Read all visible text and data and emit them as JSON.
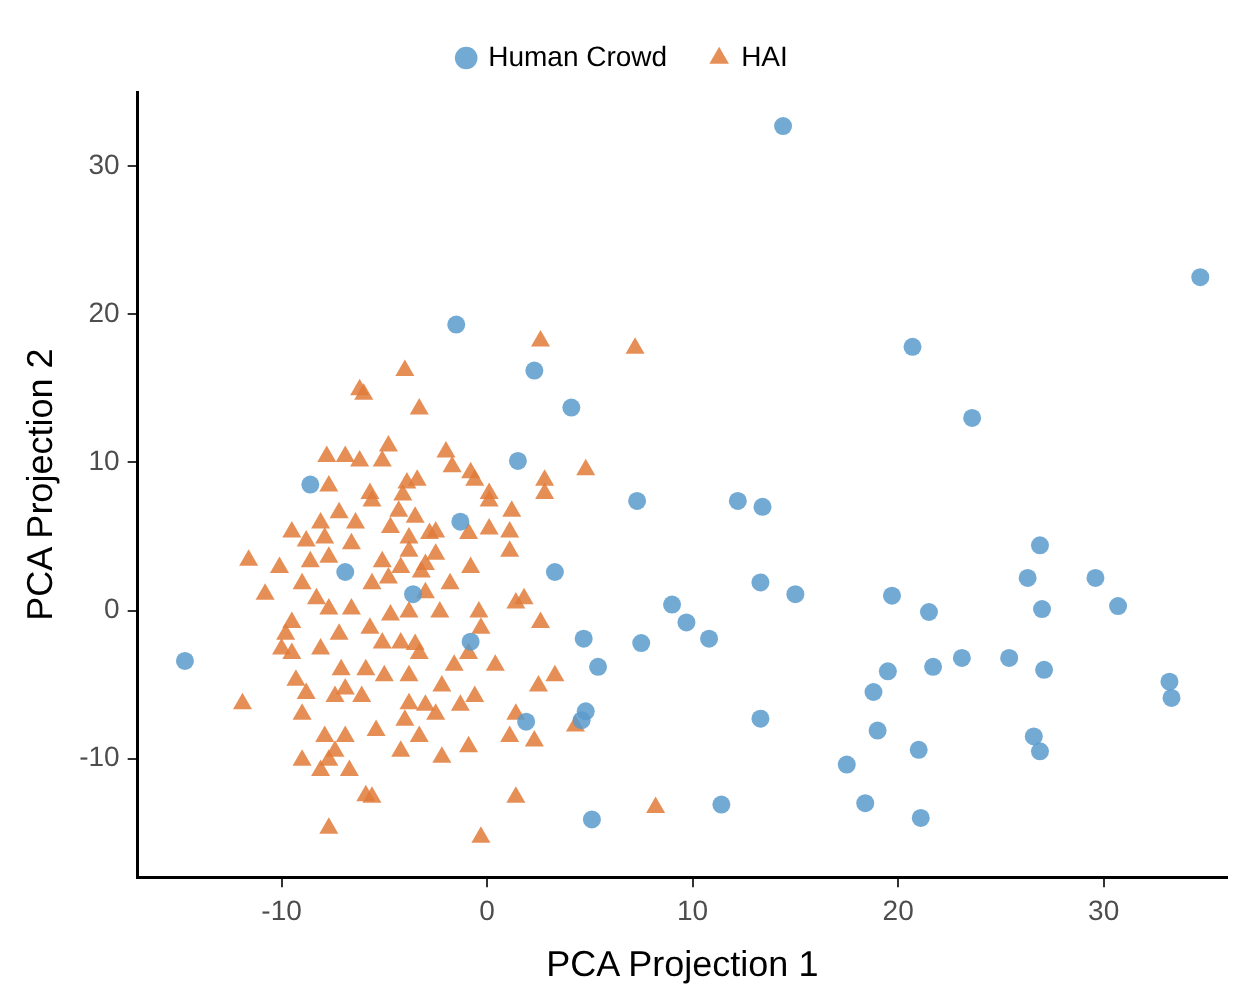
{
  "chart_data": {
    "type": "scatter",
    "xlabel": "PCA Projection 1",
    "ylabel": "PCA Projection 2",
    "xlim": [
      -17,
      36
    ],
    "ylim": [
      -18,
      35
    ],
    "xticks": [
      -10,
      0,
      10,
      20,
      30
    ],
    "yticks": [
      -10,
      0,
      10,
      20,
      30
    ],
    "grid": false,
    "legend": "top",
    "series": [
      {
        "name": "Human Crowd",
        "color": "#5b9bcc",
        "marker": "circle",
        "x": [
          -14.7,
          -8.6,
          -1.5,
          2.3,
          4.1,
          1.5,
          -1.3,
          -6.9,
          3.3,
          -0.8,
          4.7,
          5.4,
          4.8,
          4.6,
          1.9,
          5.1,
          14.4,
          34.7,
          20.7,
          23.6,
          7.3,
          12.2,
          13.4,
          13.3,
          15.0,
          9.0,
          9.7,
          10.8,
          7.5,
          13.3,
          11.4,
          -3.6,
          19.7,
          21.5,
          26.9,
          26.3,
          29.6,
          27.0,
          30.7,
          23.1,
          25.4,
          27.1,
          21.7,
          19.5,
          18.8,
          33.2,
          33.3,
          19.0,
          26.6,
          26.9,
          21.0,
          17.5,
          18.4,
          21.1
        ],
        "values": [
          -3.4,
          8.5,
          19.3,
          16.2,
          13.7,
          10.1,
          6.0,
          2.6,
          2.6,
          -2.1,
          -1.9,
          -3.8,
          -6.8,
          -7.4,
          -7.5,
          -14.1,
          32.7,
          22.5,
          17.8,
          13.0,
          7.4,
          7.4,
          7.0,
          1.9,
          1.1,
          0.4,
          -0.8,
          -1.9,
          -2.2,
          -7.3,
          -13.1,
          1.1,
          1.0,
          -0.1,
          4.4,
          2.2,
          2.2,
          0.1,
          0.3,
          -3.2,
          -3.2,
          -4.0,
          -3.8,
          -4.1,
          -5.5,
          -4.8,
          -5.9,
          -8.1,
          -8.5,
          -9.5,
          -9.4,
          -10.4,
          -13.0,
          -14.0
        ]
      },
      {
        "name": "HAI",
        "color": "#e07b39",
        "marker": "triangle",
        "x": [
          -4.0,
          -6.2,
          -6.0,
          -3.3,
          -4.8,
          -7.8,
          -6.9,
          -6.2,
          -5.1,
          -7.7,
          -3.9,
          -3.4,
          -5.7,
          -5.6,
          -4.1,
          -7.2,
          -4.3,
          -3.5,
          -8.1,
          -6.4,
          -4.7,
          -9.5,
          -8.8,
          -7.9,
          -6.6,
          -3.8,
          -2.8,
          -11.6,
          -10.1,
          -8.6,
          -7.7,
          -5.1,
          -4.2,
          -3.0,
          -10.8,
          -9.0,
          -8.3,
          -7.7,
          -6.6,
          -5.6,
          -4.8,
          -4.7,
          -3.8,
          -9.5,
          -9.8,
          -10.0,
          -9.5,
          -8.1,
          -7.2,
          -5.7,
          -5.1,
          -4.2,
          -3.3,
          -7.1,
          -5.9,
          -5.0,
          -9.3,
          -8.8,
          -7.4,
          -6.9,
          -6.1,
          -11.9,
          -9.0,
          -3.8,
          -3.0,
          -5.4,
          -4.0,
          -3.3,
          -7.9,
          -6.9,
          -7.4,
          -4.2,
          -9.0,
          -8.1,
          -7.7,
          -6.7,
          -5.9,
          -5.6,
          -7.7,
          2.6,
          7.2,
          -2.0,
          -1.7,
          -0.8,
          -0.6,
          4.8,
          2.8,
          2.8,
          0.1,
          0.1,
          1.2,
          1.1,
          0.1,
          -0.9,
          -2.5,
          -3.8,
          -2.5,
          1.1,
          -3.2,
          -0.8,
          -1.8,
          -3.0,
          -2.3,
          1.4,
          1.8,
          2.6,
          -0.4,
          -0.3,
          -3.5,
          -0.9,
          0.4,
          -1.6,
          -3.8,
          -2.2,
          -0.6,
          -1.3,
          -2.5,
          3.3,
          2.5,
          1.4,
          4.3,
          1.1,
          2.3,
          -0.9,
          -2.2,
          1.4,
          8.2,
          -0.3
        ],
        "values": [
          16.2,
          14.9,
          14.6,
          13.6,
          11.1,
          10.4,
          10.4,
          10.1,
          10.1,
          8.4,
          8.6,
          8.8,
          7.9,
          7.4,
          7.8,
          6.6,
          6.7,
          6.3,
          5.9,
          5.9,
          5.6,
          5.3,
          4.7,
          4.9,
          4.5,
          4.9,
          5.2,
          3.4,
          2.9,
          3.3,
          3.6,
          3.3,
          2.9,
          3.1,
          1.1,
          1.8,
          0.8,
          0.1,
          0.1,
          1.8,
          2.2,
          -0.3,
          -0.1,
          -0.8,
          -1.6,
          -2.6,
          -2.9,
          -2.6,
          -1.6,
          -1.2,
          -2.2,
          -2.2,
          -2.9,
          -4.0,
          -4.0,
          -4.4,
          -4.7,
          -5.6,
          -5.8,
          -5.3,
          -5.8,
          -6.3,
          -7.0,
          -6.3,
          -6.4,
          -8.1,
          -7.4,
          -8.5,
          -8.5,
          -8.5,
          -9.5,
          -9.5,
          -10.1,
          -10.8,
          -10.1,
          -10.8,
          -12.5,
          -12.6,
          -14.7,
          18.2,
          17.7,
          10.7,
          9.7,
          9.3,
          8.8,
          9.5,
          8.8,
          7.9,
          7.9,
          7.4,
          6.7,
          5.3,
          5.5,
          5.2,
          5.3,
          4.0,
          3.8,
          4.0,
          2.6,
          2.9,
          1.8,
          1.2,
          -0.1,
          0.5,
          0.8,
          -0.8,
          -0.1,
          -1.2,
          -2.3,
          -2.9,
          -3.7,
          -3.7,
          -4.4,
          -5.1,
          -5.8,
          -6.4,
          -7.0,
          -4.4,
          -5.1,
          -7.0,
          -7.8,
          -8.5,
          -8.8,
          -9.2,
          -9.9,
          -12.6,
          -13.3,
          -15.3
        ]
      }
    ]
  }
}
